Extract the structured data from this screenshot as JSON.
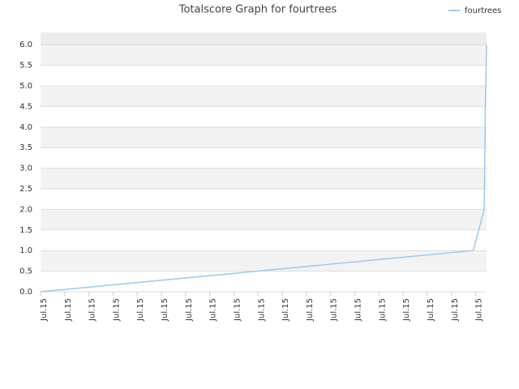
{
  "chart_data": {
    "type": "line",
    "title": "Totalscore Graph for fourtrees",
    "x": [
      0,
      17.9,
      18.35,
      18.4,
      18.45
    ],
    "series": [
      {
        "name": "fourtrees",
        "color": "#9ec8ef",
        "values": [
          0,
          1.0,
          2.0,
          4.5,
          6.0
        ]
      }
    ],
    "xlim": [
      0,
      18.45
    ],
    "xticks": [
      {
        "value": 0,
        "label": "Jul.15"
      },
      {
        "value": 1,
        "label": "Jul.15"
      },
      {
        "value": 2,
        "label": "Jul.15"
      },
      {
        "value": 3,
        "label": "Jul.15"
      },
      {
        "value": 4,
        "label": "Jul.15"
      },
      {
        "value": 5,
        "label": "Jul.15"
      },
      {
        "value": 6,
        "label": "Jul.15"
      },
      {
        "value": 7,
        "label": "Jul.15"
      },
      {
        "value": 8,
        "label": "Jul.15"
      },
      {
        "value": 9,
        "label": "Jul.15"
      },
      {
        "value": 10,
        "label": "Jul.15"
      },
      {
        "value": 11,
        "label": "Jul.15"
      },
      {
        "value": 12,
        "label": "Jul.15"
      },
      {
        "value": 13,
        "label": "Jul.15"
      },
      {
        "value": 14,
        "label": "Jul.15"
      },
      {
        "value": 15,
        "label": "Jul.15"
      },
      {
        "value": 16,
        "label": "Jul.15"
      },
      {
        "value": 17,
        "label": "Jul.15"
      },
      {
        "value": 18,
        "label": "Jul.15"
      }
    ],
    "ylim": [
      0,
      6.3
    ],
    "yticks": [
      {
        "value": 0,
        "label": "0.0"
      },
      0.5,
      {
        "value": 1,
        "label": "1.0"
      },
      1.5,
      {
        "value": 2,
        "label": "2.0"
      },
      2.5,
      {
        "value": 3,
        "label": "3.0"
      },
      3.5,
      {
        "value": 4,
        "label": "4.0"
      },
      4.5,
      {
        "value": 5,
        "label": "5.0"
      },
      5.5,
      {
        "value": 6,
        "label": "6.0"
      }
    ],
    "grid": true,
    "legend": "top-right"
  }
}
